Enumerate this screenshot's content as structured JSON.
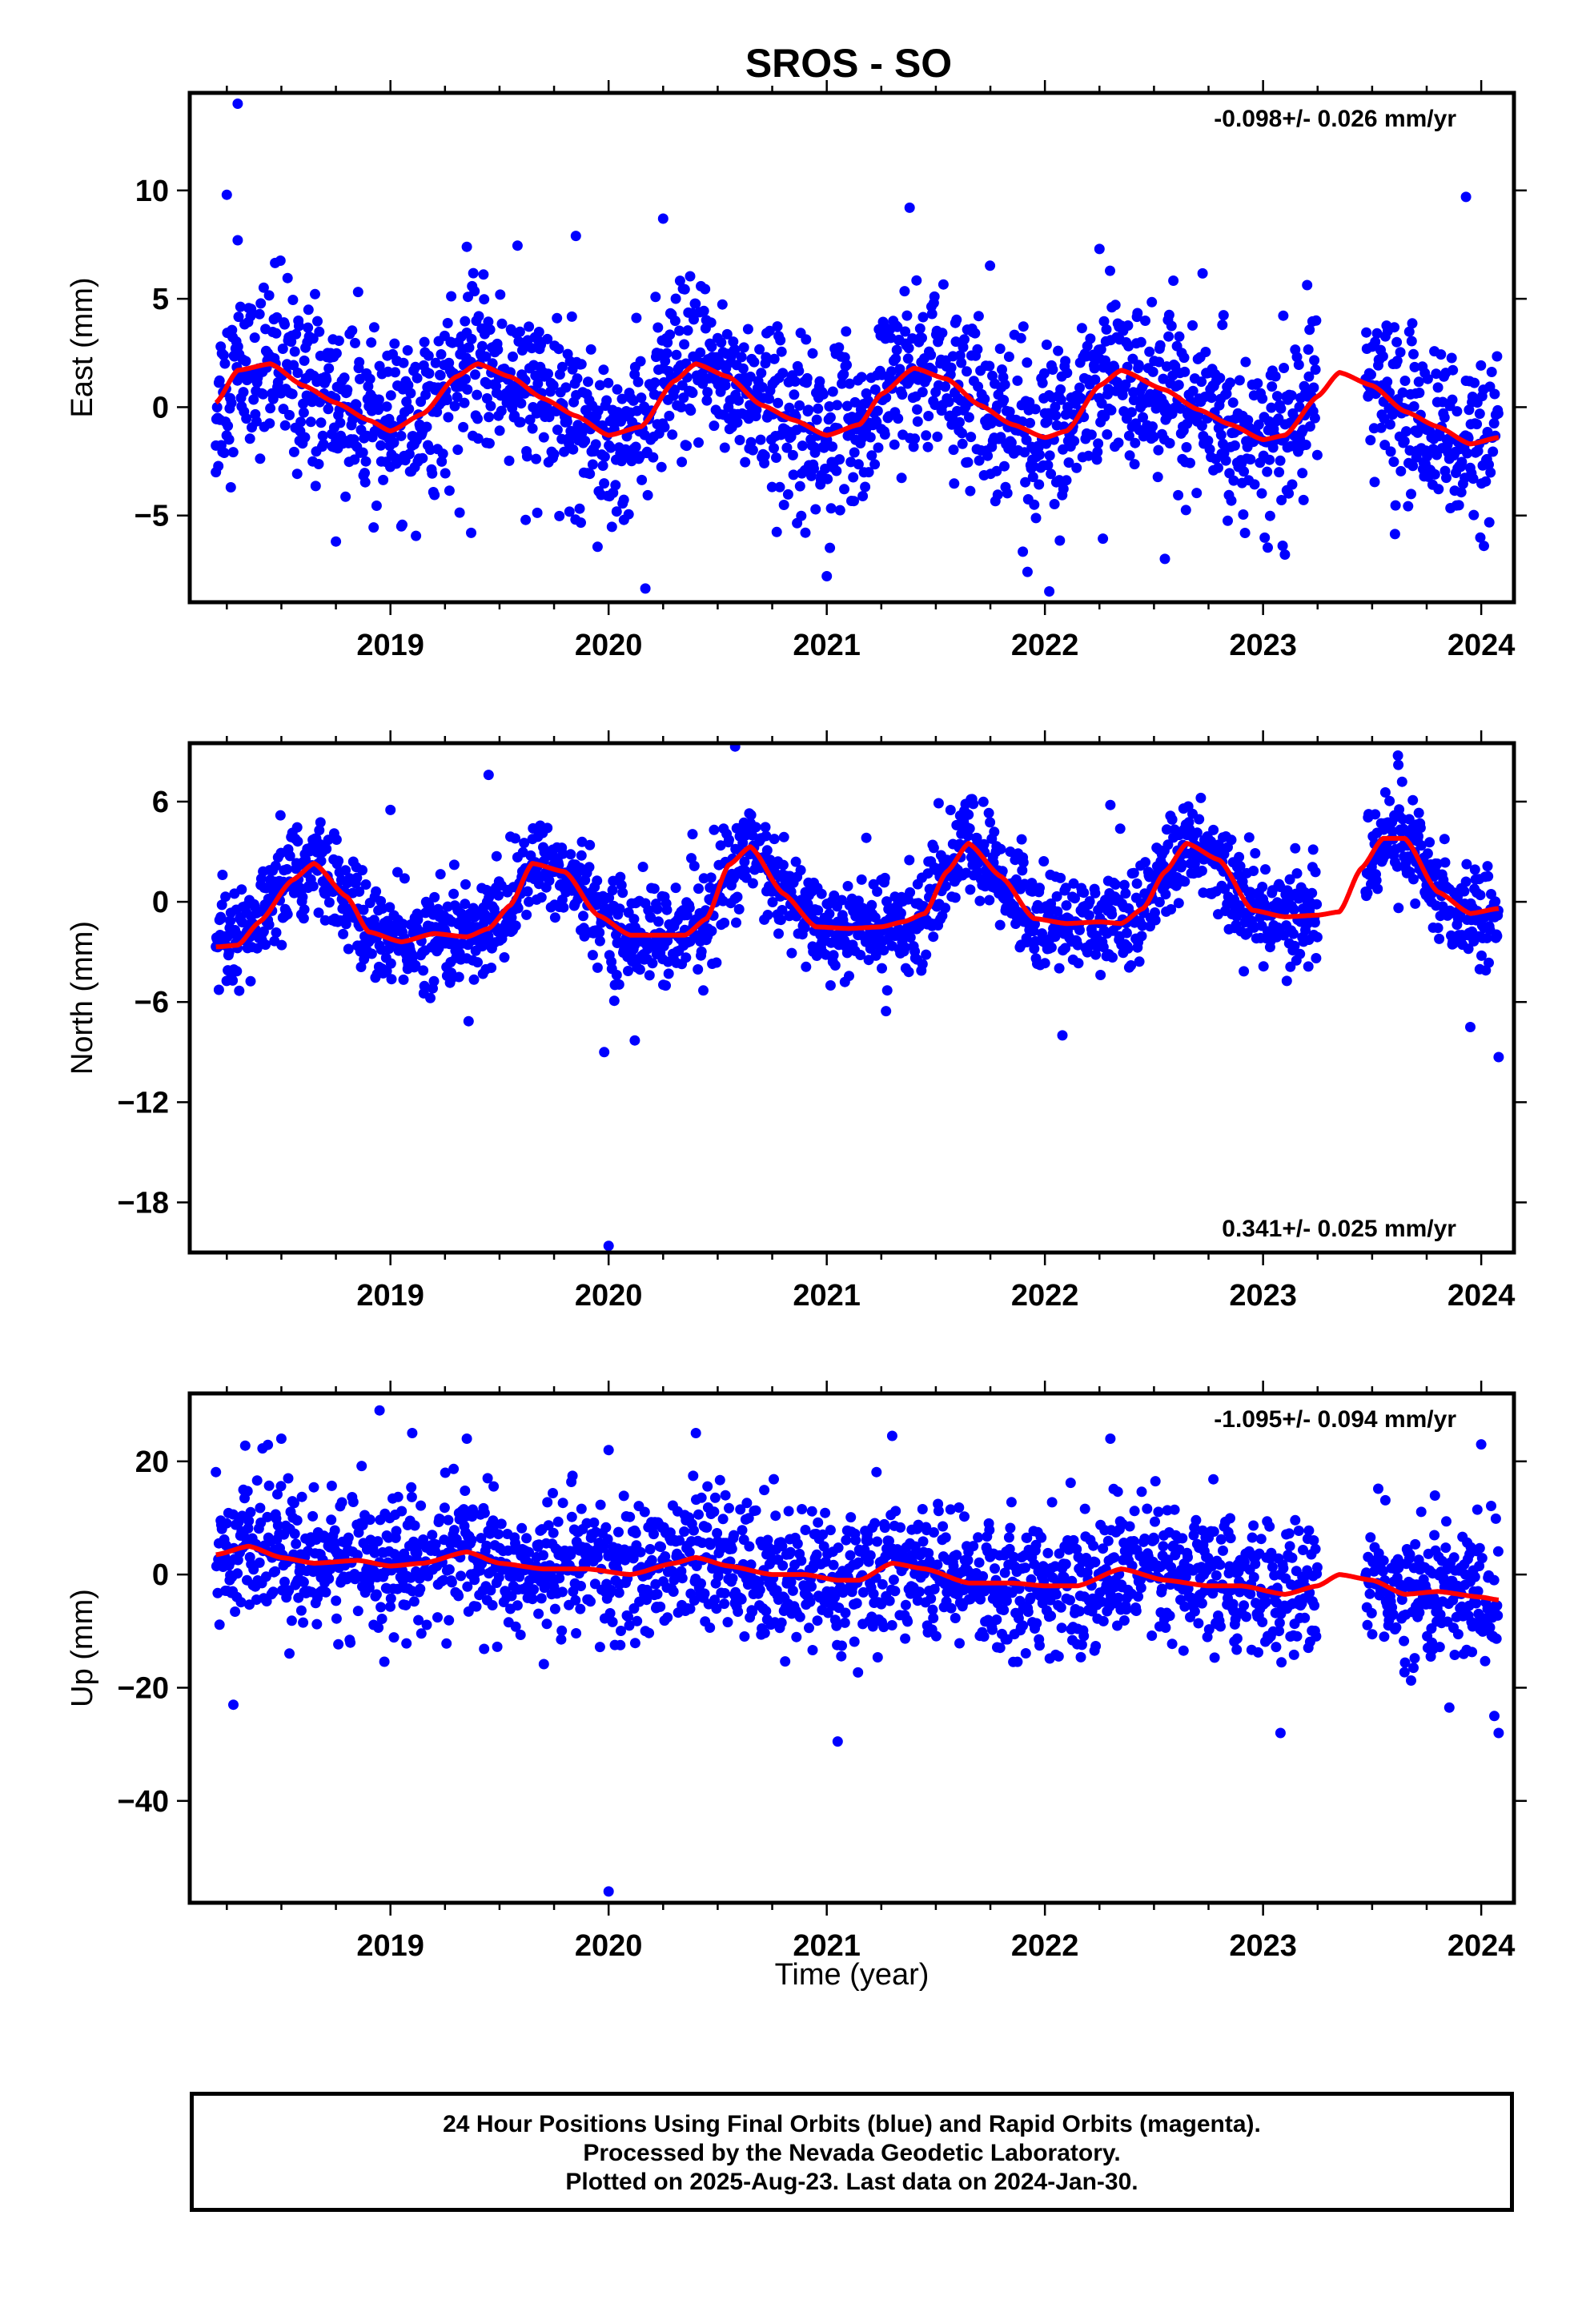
{
  "title": "SROS - SO",
  "xlabel": "Time (year)",
  "footer": {
    "line1": "24 Hour Positions Using Final Orbits (blue) and Rapid Orbits (magenta).",
    "line2": "Processed by the Nevada Geodetic Laboratory.",
    "line3": "Plotted on 2025-Aug-23. Last data on 2024-Jan-30."
  },
  "colors": {
    "points": "#0000ff",
    "fit": "#ff0000",
    "frame": "#000000"
  },
  "chart_data": [
    {
      "type": "scatter",
      "ylabel": "East (mm)",
      "rate": "-0.098+/- 0.026 mm/yr",
      "rate_position": "top-right",
      "xlim": [
        2018.08,
        2024.15
      ],
      "ylim": [
        -9,
        14.5
      ],
      "xticks": [
        2019,
        2020,
        2021,
        2022,
        2023,
        2024
      ],
      "yticks": [
        -5,
        0,
        5,
        10
      ],
      "data_range": [
        2018.2,
        2024.08
      ],
      "gap": [
        2023.25,
        2023.47
      ],
      "noise_sd": 1.9,
      "fit": {
        "x": [
          2018.2,
          2018.3,
          2018.45,
          2018.6,
          2018.75,
          2018.9,
          2019.0,
          2019.15,
          2019.3,
          2019.4,
          2019.55,
          2019.7,
          2019.85,
          2020.0,
          2020.15,
          2020.3,
          2020.4,
          2020.55,
          2020.7,
          2020.85,
          2021.0,
          2021.15,
          2021.25,
          2021.4,
          2021.55,
          2021.7,
          2021.85,
          2022.0,
          2022.1,
          2022.25,
          2022.35,
          2022.55,
          2022.7,
          2022.85,
          2023.0,
          2023.1,
          2023.25,
          2023.35,
          2023.5,
          2023.65,
          2023.8,
          2023.95,
          2024.08
        ],
        "y": [
          0.2,
          1.7,
          2.0,
          1.0,
          0.2,
          -0.6,
          -1.1,
          -0.3,
          1.4,
          2.0,
          1.4,
          0.4,
          -0.4,
          -1.3,
          -0.9,
          1.2,
          2.0,
          1.4,
          0.1,
          -0.6,
          -1.3,
          -0.8,
          0.6,
          1.8,
          1.3,
          0.1,
          -0.8,
          -1.4,
          -1.1,
          1.0,
          1.7,
          0.8,
          -0.1,
          -0.8,
          -1.5,
          -1.3,
          0.5,
          1.6,
          1.0,
          -0.2,
          -0.9,
          -1.7,
          -1.4
        ]
      },
      "outliers": [
        {
          "x": 2018.3,
          "y": 14.0
        },
        {
          "x": 2018.25,
          "y": 9.8
        },
        {
          "x": 2018.3,
          "y": 7.7
        },
        {
          "x": 2019.35,
          "y": 7.4
        },
        {
          "x": 2019.85,
          "y": 7.9
        },
        {
          "x": 2020.25,
          "y": 8.7
        },
        {
          "x": 2021.38,
          "y": 9.2
        },
        {
          "x": 2022.25,
          "y": 7.3
        },
        {
          "x": 2023.93,
          "y": 9.7
        },
        {
          "x": 2018.75,
          "y": -6.2
        },
        {
          "x": 2019.37,
          "y": -5.8
        },
        {
          "x": 2019.62,
          "y": -5.2
        },
        {
          "x": 2020.07,
          "y": -5.2
        },
        {
          "x": 2021.0,
          "y": -7.8
        },
        {
          "x": 2021.92,
          "y": -7.6
        },
        {
          "x": 2022.02,
          "y": -8.5
        },
        {
          "x": 2022.55,
          "y": -7.0
        },
        {
          "x": 2023.1,
          "y": -6.8
        },
        {
          "x": 2018.2,
          "y": -3.0
        },
        {
          "x": 2019.05,
          "y": -5.5
        }
      ]
    },
    {
      "type": "scatter",
      "ylabel": "North (mm)",
      "rate": "0.341+/- 0.025 mm/yr",
      "rate_position": "bottom-right",
      "xlim": [
        2018.08,
        2024.15
      ],
      "ylim": [
        -21,
        9.5
      ],
      "xticks": [
        2019,
        2020,
        2021,
        2022,
        2023,
        2024
      ],
      "yticks": [
        -18,
        -12,
        -6,
        0,
        6
      ],
      "data_range": [
        2018.2,
        2024.08
      ],
      "gap": [
        2023.25,
        2023.47
      ],
      "noise_sd": 1.5,
      "fit": {
        "x": [
          2018.2,
          2018.3,
          2018.4,
          2018.55,
          2018.65,
          2018.8,
          2018.9,
          2019.05,
          2019.2,
          2019.35,
          2019.45,
          2019.55,
          2019.65,
          2019.8,
          2019.95,
          2020.1,
          2020.25,
          2020.35,
          2020.45,
          2020.55,
          2020.65,
          2020.8,
          2020.95,
          2021.1,
          2021.25,
          2021.35,
          2021.45,
          2021.55,
          2021.65,
          2021.8,
          2021.95,
          2022.1,
          2022.25,
          2022.35,
          2022.45,
          2022.55,
          2022.65,
          2022.8,
          2022.95,
          2023.1,
          2023.25,
          2023.35,
          2023.45,
          2023.55,
          2023.65,
          2023.8,
          2023.95,
          2024.08
        ],
        "y": [
          -2.7,
          -2.6,
          -1.2,
          1.3,
          2.3,
          0.3,
          -1.8,
          -2.4,
          -1.9,
          -2.1,
          -1.6,
          -0.2,
          2.3,
          1.8,
          -0.8,
          -2.0,
          -2.0,
          -2.0,
          -1.0,
          2.2,
          3.3,
          0.5,
          -1.5,
          -1.6,
          -1.5,
          -1.2,
          -0.7,
          1.8,
          3.5,
          1.5,
          -1.0,
          -1.3,
          -1.2,
          -1.3,
          -0.4,
          1.8,
          3.5,
          2.5,
          -0.5,
          -0.9,
          -0.8,
          -0.6,
          2.0,
          3.8,
          3.8,
          0.6,
          -0.7,
          -0.4
        ]
      },
      "outliers": [
        {
          "x": 2020.0,
          "y": -20.6
        },
        {
          "x": 2019.98,
          "y": -9.0
        },
        {
          "x": 2020.12,
          "y": -8.3
        },
        {
          "x": 2022.08,
          "y": -8.0
        },
        {
          "x": 2024.08,
          "y": -9.3
        },
        {
          "x": 2023.95,
          "y": -7.5
        },
        {
          "x": 2020.58,
          "y": 9.3
        },
        {
          "x": 2019.45,
          "y": 7.6
        },
        {
          "x": 2023.62,
          "y": 8.2
        },
        {
          "x": 2019.0,
          "y": 5.5
        },
        {
          "x": 2022.3,
          "y": 5.8
        }
      ]
    },
    {
      "type": "scatter",
      "ylabel": "Up (mm)",
      "rate": "-1.095+/- 0.094 mm/yr",
      "rate_position": "top-right",
      "xlim": [
        2018.08,
        2024.15
      ],
      "ylim": [
        -58,
        32
      ],
      "xticks": [
        2019,
        2020,
        2021,
        2022,
        2023,
        2024
      ],
      "yticks": [
        -40,
        -20,
        0,
        20
      ],
      "data_range": [
        2018.2,
        2024.08
      ],
      "gap": [
        2023.25,
        2023.47
      ],
      "noise_sd": 6.0,
      "fit": {
        "x": [
          2018.2,
          2018.35,
          2018.5,
          2018.65,
          2018.85,
          2019.0,
          2019.15,
          2019.35,
          2019.5,
          2019.7,
          2019.9,
          2020.1,
          2020.3,
          2020.4,
          2020.55,
          2020.75,
          2020.9,
          2021.05,
          2021.15,
          2021.3,
          2021.45,
          2021.65,
          2021.85,
          2022.0,
          2022.15,
          2022.35,
          2022.55,
          2022.75,
          2022.9,
          2023.1,
          2023.25,
          2023.35,
          2023.5,
          2023.65,
          2023.8,
          2024.0,
          2024.08
        ],
        "y": [
          3.5,
          5.0,
          3.0,
          2.0,
          2.5,
          1.5,
          2.0,
          4.0,
          2.0,
          1.0,
          1.0,
          0.0,
          2.0,
          3.0,
          1.5,
          0.0,
          0.0,
          -1.0,
          -1.0,
          2.0,
          1.0,
          -1.5,
          -1.5,
          -2.0,
          -2.0,
          1.0,
          -1.0,
          -2.0,
          -2.0,
          -3.5,
          -2.0,
          0.0,
          -1.0,
          -3.5,
          -3.0,
          -4.0,
          -4.5
        ]
      },
      "outliers": [
        {
          "x": 2020.0,
          "y": -56.0
        },
        {
          "x": 2018.28,
          "y": -23.0
        },
        {
          "x": 2021.05,
          "y": -29.5
        },
        {
          "x": 2023.08,
          "y": -28.0
        },
        {
          "x": 2024.08,
          "y": -28.0
        },
        {
          "x": 2024.06,
          "y": -25.0
        },
        {
          "x": 2018.95,
          "y": 29.0
        },
        {
          "x": 2019.1,
          "y": 25.0
        },
        {
          "x": 2018.5,
          "y": 24.0
        },
        {
          "x": 2019.35,
          "y": 24.0
        },
        {
          "x": 2020.4,
          "y": 25.0
        },
        {
          "x": 2021.3,
          "y": 24.5
        },
        {
          "x": 2022.3,
          "y": 24.0
        },
        {
          "x": 2024.0,
          "y": 23.0
        },
        {
          "x": 2020.0,
          "y": 22.0
        }
      ]
    }
  ]
}
